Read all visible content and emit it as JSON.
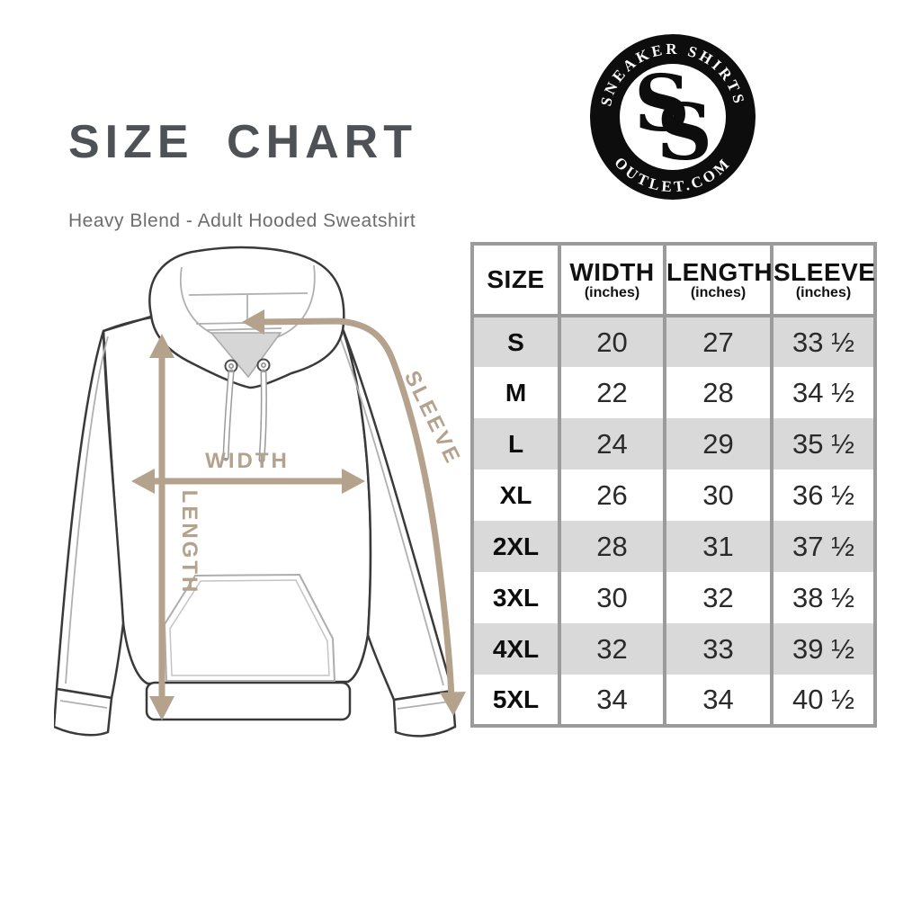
{
  "header": {
    "title": "SIZE CHART",
    "subtitle": "Heavy Blend - Adult Hooded Sweatshirt"
  },
  "logo": {
    "arc_top": "SNEAKER SHIRTS",
    "arc_bottom": "OUTLET.COM",
    "monogram_letter": "S"
  },
  "diagram": {
    "labels": {
      "width": "WIDTH",
      "length": "LENGTH",
      "sleeve": "SLEEVE"
    }
  },
  "table": {
    "columns": [
      {
        "label": "SIZE",
        "sub": ""
      },
      {
        "label": "WIDTH",
        "sub": "(inches)"
      },
      {
        "label": "LENGTH",
        "sub": "(inches)"
      },
      {
        "label": "SLEEVE",
        "sub": "(inches)"
      }
    ],
    "rows": [
      {
        "size": "S",
        "width": "20",
        "length": "27",
        "sleeve": "33 ½"
      },
      {
        "size": "M",
        "width": "22",
        "length": "28",
        "sleeve": "34 ½"
      },
      {
        "size": "L",
        "width": "24",
        "length": "29",
        "sleeve": "35 ½"
      },
      {
        "size": "XL",
        "width": "26",
        "length": "30",
        "sleeve": "36 ½"
      },
      {
        "size": "2XL",
        "width": "28",
        "length": "31",
        "sleeve": "37 ½"
      },
      {
        "size": "3XL",
        "width": "30",
        "length": "32",
        "sleeve": "38 ½"
      },
      {
        "size": "4XL",
        "width": "32",
        "length": "33",
        "sleeve": "39 ½"
      },
      {
        "size": "5XL",
        "width": "34",
        "length": "34",
        "sleeve": "40 ½"
      }
    ]
  },
  "colors": {
    "accent_tan": "#b4a28c",
    "title_gray": "#4e5156",
    "subtitle_gray": "#6d6d6d",
    "table_border": "#9b9b9b",
    "row_stripe": "#d9d9d9",
    "ink": "#1f1f1f",
    "logo_black": "#0d0d0d",
    "collar_fill": "#d6d6d6"
  }
}
